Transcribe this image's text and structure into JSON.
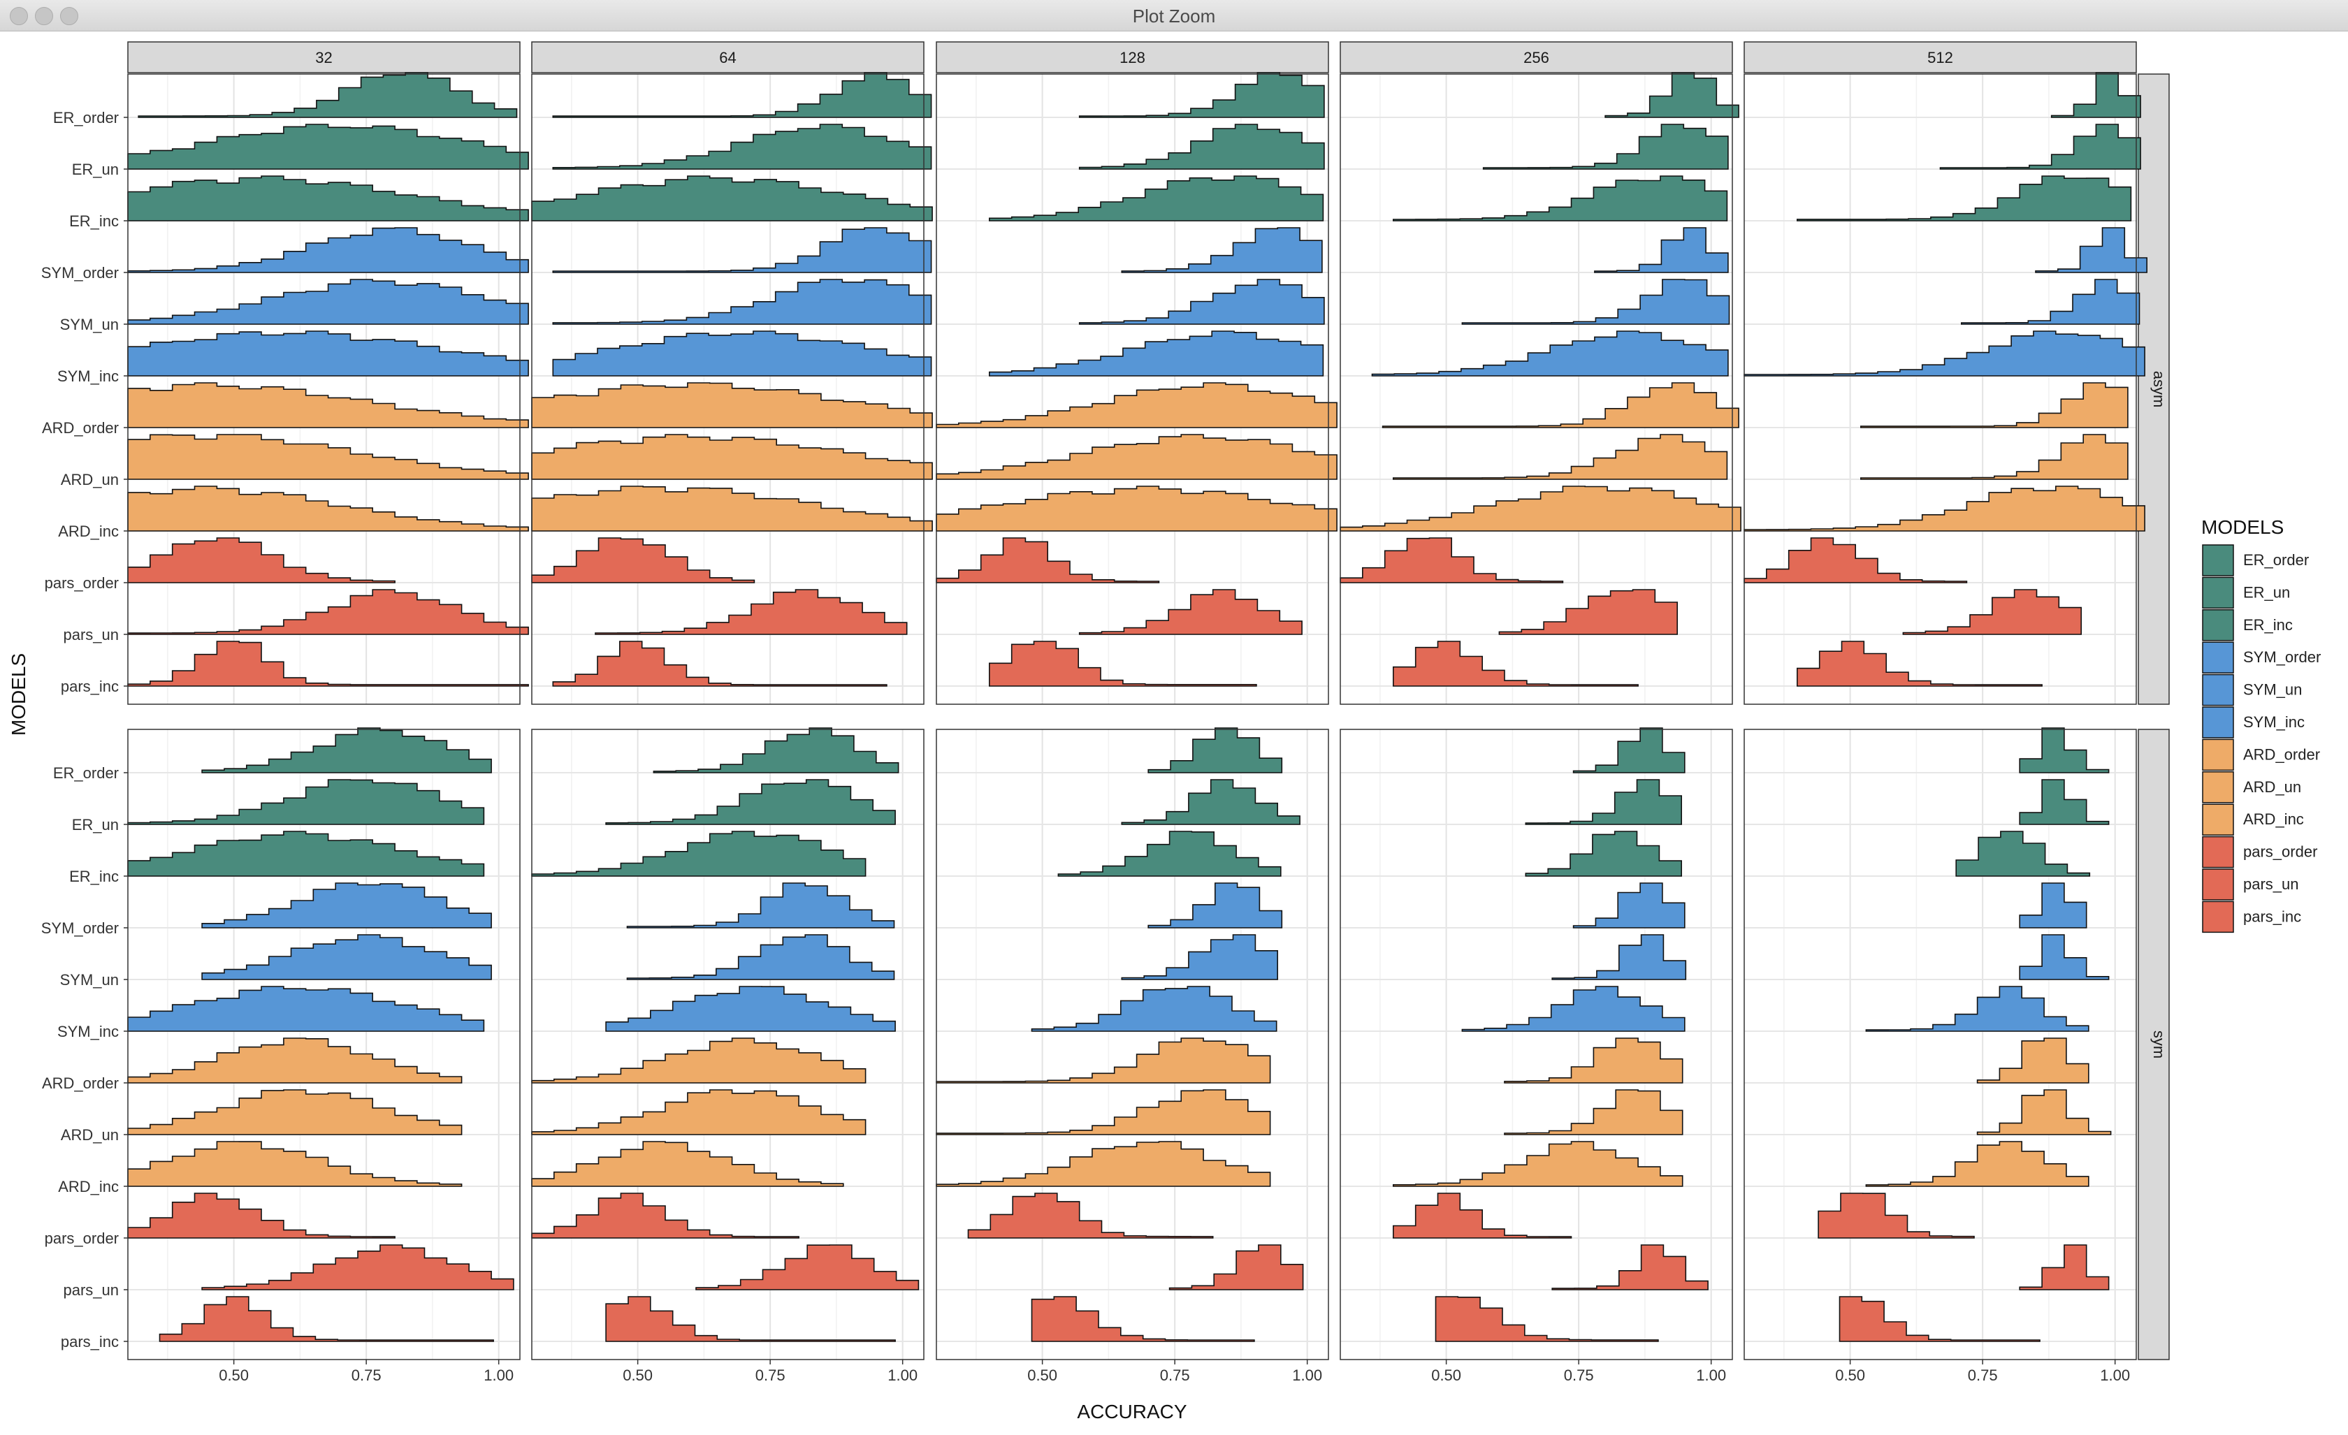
{
  "window": {
    "title": "Plot Zoom"
  },
  "chart_data": {
    "type": "histogram",
    "xlabel": "ACCURACY",
    "ylabel": "MODELS",
    "xlim": [
      0.3,
      1.04
    ],
    "x_ticks": [
      "0.50",
      "0.75",
      "1.00"
    ],
    "x_tick_values": [
      0.5,
      0.75,
      1.0
    ],
    "grid": "on",
    "column_facets": [
      "32",
      "64",
      "128",
      "256",
      "512"
    ],
    "row_facets": [
      "asym",
      "sym"
    ],
    "models": [
      "ER_order",
      "ER_un",
      "ER_inc",
      "SYM_order",
      "SYM_un",
      "SYM_inc",
      "ARD_order",
      "ARD_un",
      "ARD_inc",
      "pars_order",
      "pars_un",
      "pars_inc"
    ],
    "colors": {
      "ER": "#4a8b7d",
      "SYM": "#5796d6",
      "ARD": "#eeab68",
      "pars": "#e26a56"
    },
    "legend": {
      "title": "MODELS",
      "position": "right"
    },
    "bin_width": 0.042,
    "distributions": {
      "asym": {
        "32": {
          "ER_order": [
            0.32,
            1.04,
            0.82,
            0.1
          ],
          "ER_un": [
            0.3,
            1.04,
            0.7,
            0.25
          ],
          "ER_inc": [
            0.3,
            1.04,
            0.55,
            0.28
          ],
          "SYM_order": [
            0.3,
            1.04,
            0.8,
            0.15
          ],
          "SYM_un": [
            0.3,
            1.04,
            0.78,
            0.2
          ],
          "SYM_inc": [
            0.3,
            1.04,
            0.6,
            0.3
          ],
          "ARD_order": [
            0.3,
            1.04,
            0.45,
            0.3
          ],
          "ARD_un": [
            0.3,
            1.04,
            0.45,
            0.28
          ],
          "ARD_inc": [
            0.3,
            1.04,
            0.45,
            0.25
          ],
          "pars_order": [
            0.3,
            0.82,
            0.47,
            0.1
          ],
          "pars_un": [
            0.3,
            1.04,
            0.8,
            0.12
          ],
          "pars_inc": [
            0.3,
            1.04,
            0.5,
            0.06
          ]
        },
        "64": {
          "ER_order": [
            0.34,
            1.04,
            0.95,
            0.08
          ],
          "ER_un": [
            0.34,
            1.04,
            0.85,
            0.15
          ],
          "ER_inc": [
            0.3,
            1.04,
            0.65,
            0.25
          ],
          "SYM_order": [
            0.34,
            1.04,
            0.95,
            0.09
          ],
          "SYM_un": [
            0.34,
            1.04,
            0.9,
            0.14
          ],
          "SYM_inc": [
            0.34,
            1.04,
            0.7,
            0.25
          ],
          "ARD_order": [
            0.3,
            1.04,
            0.6,
            0.3
          ],
          "ARD_un": [
            0.3,
            1.04,
            0.6,
            0.3
          ],
          "ARD_inc": [
            0.3,
            1.04,
            0.55,
            0.28
          ],
          "pars_order": [
            0.3,
            0.74,
            0.48,
            0.08
          ],
          "pars_un": [
            0.42,
            0.99,
            0.82,
            0.1
          ],
          "pars_inc": [
            0.34,
            0.95,
            0.5,
            0.06
          ]
        },
        "128": {
          "ER_order": [
            0.57,
            1.04,
            0.95,
            0.08
          ],
          "ER_un": [
            0.57,
            1.04,
            0.9,
            0.1
          ],
          "ER_inc": [
            0.4,
            1.04,
            0.85,
            0.16
          ],
          "SYM_order": [
            0.65,
            1.04,
            0.95,
            0.08
          ],
          "SYM_un": [
            0.57,
            1.04,
            0.92,
            0.1
          ],
          "SYM_inc": [
            0.4,
            1.04,
            0.85,
            0.18
          ],
          "ARD_order": [
            0.3,
            1.04,
            0.82,
            0.2
          ],
          "ARD_un": [
            0.3,
            1.04,
            0.8,
            0.22
          ],
          "ARD_inc": [
            0.3,
            1.04,
            0.7,
            0.28
          ],
          "pars_order": [
            0.3,
            0.74,
            0.46,
            0.06
          ],
          "pars_un": [
            0.57,
            0.99,
            0.84,
            0.08
          ],
          "pars_inc": [
            0.4,
            0.9,
            0.5,
            0.06
          ]
        },
        "256": {
          "ER_order": [
            0.8,
            1.04,
            0.96,
            0.04
          ],
          "ER_un": [
            0.57,
            1.04,
            0.95,
            0.07
          ],
          "ER_inc": [
            0.4,
            1.04,
            0.9,
            0.12
          ],
          "SYM_order": [
            0.78,
            1.04,
            0.96,
            0.04
          ],
          "SYM_un": [
            0.53,
            1.04,
            0.95,
            0.07
          ],
          "SYM_inc": [
            0.36,
            1.04,
            0.85,
            0.15
          ],
          "ARD_order": [
            0.38,
            1.04,
            0.93,
            0.08
          ],
          "ARD_un": [
            0.4,
            1.04,
            0.92,
            0.1
          ],
          "ARD_inc": [
            0.3,
            1.04,
            0.8,
            0.2
          ],
          "pars_order": [
            0.3,
            0.74,
            0.46,
            0.06
          ],
          "pars_un": [
            0.6,
            0.95,
            0.84,
            0.08
          ],
          "pars_inc": [
            0.4,
            0.87,
            0.5,
            0.06
          ]
        },
        "512": {
          "ER_order": [
            0.88,
            1.04,
            0.99,
            0.03
          ],
          "ER_un": [
            0.67,
            1.04,
            0.98,
            0.05
          ],
          "ER_inc": [
            0.4,
            1.04,
            0.92,
            0.1
          ],
          "SYM_order": [
            0.85,
            1.04,
            0.99,
            0.03
          ],
          "SYM_un": [
            0.71,
            1.04,
            0.98,
            0.05
          ],
          "SYM_inc": [
            0.3,
            1.04,
            0.9,
            0.14
          ],
          "ARD_order": [
            0.52,
            1.04,
            0.97,
            0.06
          ],
          "ARD_un": [
            0.52,
            1.04,
            0.97,
            0.07
          ],
          "ARD_inc": [
            0.3,
            1.04,
            0.88,
            0.15
          ],
          "pars_order": [
            0.3,
            0.74,
            0.46,
            0.06
          ],
          "pars_un": [
            0.6,
            0.95,
            0.84,
            0.07
          ],
          "pars_inc": [
            0.4,
            0.87,
            0.5,
            0.06
          ]
        }
      },
      "sym": {
        "32": {
          "ER_order": [
            0.44,
            0.99,
            0.78,
            0.12
          ],
          "ER_un": [
            0.3,
            0.99,
            0.75,
            0.14
          ],
          "ER_inc": [
            0.3,
            0.99,
            0.62,
            0.2
          ],
          "SYM_order": [
            0.44,
            0.99,
            0.76,
            0.13
          ],
          "SYM_un": [
            0.44,
            0.99,
            0.75,
            0.14
          ],
          "SYM_inc": [
            0.3,
            0.99,
            0.62,
            0.2
          ],
          "ARD_order": [
            0.3,
            0.91,
            0.62,
            0.14
          ],
          "ARD_un": [
            0.3,
            0.91,
            0.63,
            0.15
          ],
          "ARD_inc": [
            0.3,
            0.91,
            0.52,
            0.14
          ],
          "pars_order": [
            0.3,
            0.82,
            0.46,
            0.08
          ],
          "pars_un": [
            0.44,
            1.04,
            0.8,
            0.12
          ],
          "pars_inc": [
            0.36,
            0.99,
            0.5,
            0.06
          ]
        },
        "64": {
          "ER_order": [
            0.53,
            0.99,
            0.83,
            0.08
          ],
          "ER_un": [
            0.44,
            0.99,
            0.81,
            0.1
          ],
          "ER_inc": [
            0.3,
            0.95,
            0.72,
            0.14
          ],
          "SYM_order": [
            0.48,
            0.99,
            0.82,
            0.07
          ],
          "SYM_un": [
            0.48,
            0.99,
            0.81,
            0.08
          ],
          "SYM_inc": [
            0.44,
            0.99,
            0.72,
            0.14
          ],
          "ARD_order": [
            0.3,
            0.91,
            0.7,
            0.14
          ],
          "ARD_un": [
            0.3,
            0.91,
            0.69,
            0.14
          ],
          "ARD_inc": [
            0.3,
            0.87,
            0.55,
            0.12
          ],
          "pars_order": [
            0.3,
            0.82,
            0.48,
            0.07
          ],
          "pars_un": [
            0.61,
            1.04,
            0.86,
            0.08
          ],
          "pars_inc": [
            0.44,
            0.99,
            0.5,
            0.06
          ]
        },
        "128": {
          "ER_order": [
            0.7,
            0.95,
            0.85,
            0.05
          ],
          "ER_un": [
            0.65,
            0.99,
            0.85,
            0.06
          ],
          "ER_inc": [
            0.53,
            0.95,
            0.78,
            0.08
          ],
          "SYM_order": [
            0.7,
            0.95,
            0.86,
            0.05
          ],
          "SYM_un": [
            0.65,
            0.95,
            0.86,
            0.06
          ],
          "SYM_inc": [
            0.48,
            0.95,
            0.76,
            0.09
          ],
          "ARD_order": [
            0.3,
            0.95,
            0.8,
            0.1
          ],
          "ARD_un": [
            0.3,
            0.95,
            0.8,
            0.1
          ],
          "ARD_inc": [
            0.3,
            0.91,
            0.7,
            0.13
          ],
          "pars_order": [
            0.36,
            0.82,
            0.5,
            0.06
          ],
          "pars_un": [
            0.74,
            0.99,
            0.92,
            0.05
          ],
          "pars_inc": [
            0.48,
            0.91,
            0.52,
            0.07
          ]
        },
        "256": {
          "ER_order": [
            0.74,
            0.95,
            0.88,
            0.04
          ],
          "ER_un": [
            0.65,
            0.95,
            0.88,
            0.05
          ],
          "ER_inc": [
            0.65,
            0.95,
            0.83,
            0.06
          ],
          "SYM_order": [
            0.74,
            0.95,
            0.88,
            0.04
          ],
          "SYM_un": [
            0.7,
            0.95,
            0.88,
            0.04
          ],
          "SYM_inc": [
            0.53,
            0.95,
            0.8,
            0.08
          ],
          "ARD_order": [
            0.61,
            0.95,
            0.85,
            0.06
          ],
          "ARD_un": [
            0.61,
            0.95,
            0.86,
            0.06
          ],
          "ARD_inc": [
            0.4,
            0.95,
            0.75,
            0.1
          ],
          "pars_order": [
            0.4,
            0.74,
            0.5,
            0.05
          ],
          "pars_un": [
            0.7,
            0.99,
            0.9,
            0.04
          ],
          "pars_inc": [
            0.48,
            0.91,
            0.52,
            0.07
          ]
        },
        "512": {
          "ER_order": [
            0.82,
            0.99,
            0.89,
            0.03
          ],
          "ER_un": [
            0.82,
            0.99,
            0.89,
            0.03
          ],
          "ER_inc": [
            0.7,
            0.95,
            0.8,
            0.05
          ],
          "SYM_order": [
            0.82,
            0.95,
            0.89,
            0.03
          ],
          "SYM_un": [
            0.82,
            0.99,
            0.89,
            0.03
          ],
          "SYM_inc": [
            0.53,
            0.95,
            0.8,
            0.06
          ],
          "ARD_order": [
            0.74,
            0.95,
            0.87,
            0.04
          ],
          "ARD_un": [
            0.74,
            0.99,
            0.87,
            0.04
          ],
          "ARD_inc": [
            0.53,
            0.95,
            0.8,
            0.07
          ],
          "pars_order": [
            0.44,
            0.74,
            0.52,
            0.05
          ],
          "pars_un": [
            0.82,
            0.99,
            0.92,
            0.03
          ],
          "pars_inc": [
            0.48,
            0.87,
            0.52,
            0.05
          ]
        }
      }
    }
  }
}
